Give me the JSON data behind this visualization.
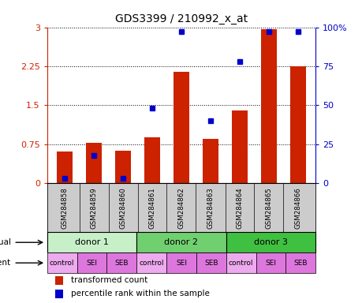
{
  "title": "GDS3399 / 210992_x_at",
  "samples": [
    "GSM284858",
    "GSM284859",
    "GSM284860",
    "GSM284861",
    "GSM284862",
    "GSM284863",
    "GSM284864",
    "GSM284865",
    "GSM284866"
  ],
  "red_values": [
    0.62,
    0.78,
    0.63,
    0.88,
    2.15,
    0.85,
    1.4,
    2.97,
    2.25
  ],
  "blue_pct": [
    3,
    18,
    3,
    48,
    97,
    40,
    78,
    97,
    97
  ],
  "ylim_left": [
    0,
    3.0
  ],
  "ylim_right": [
    0,
    100
  ],
  "yticks_left": [
    0,
    0.75,
    1.5,
    2.25,
    3.0
  ],
  "yticks_left_labels": [
    "0",
    "0.75",
    "1.5",
    "2.25",
    "3"
  ],
  "yticks_right": [
    0,
    25,
    50,
    75,
    100
  ],
  "yticks_right_labels": [
    "0",
    "25",
    "50",
    "75",
    "100%"
  ],
  "individual_groups": [
    {
      "label": "donor 1",
      "start": 0,
      "end": 3,
      "color": "#c8f0c8"
    },
    {
      "label": "donor 2",
      "start": 3,
      "end": 6,
      "color": "#70d070"
    },
    {
      "label": "donor 3",
      "start": 6,
      "end": 9,
      "color": "#40c040"
    }
  ],
  "agent_items": [
    {
      "label": "control",
      "color": "#eeaaee"
    },
    {
      "label": "SEI",
      "color": "#dd77dd"
    },
    {
      "label": "SEB",
      "color": "#dd77dd"
    },
    {
      "label": "control",
      "color": "#eeaaee"
    },
    {
      "label": "SEI",
      "color": "#dd77dd"
    },
    {
      "label": "SEB",
      "color": "#dd77dd"
    },
    {
      "label": "control",
      "color": "#eeaaee"
    },
    {
      "label": "SEI",
      "color": "#dd77dd"
    },
    {
      "label": "SEB",
      "color": "#dd77dd"
    }
  ],
  "bar_color": "#cc2200",
  "dot_color": "#0000cc",
  "sample_bg": "#cccccc",
  "bar_width": 0.55,
  "red_label_color": "#cc2200",
  "blue_label_color": "#0000cc",
  "legend_red": "transformed count",
  "legend_blue": "percentile rank within the sample"
}
